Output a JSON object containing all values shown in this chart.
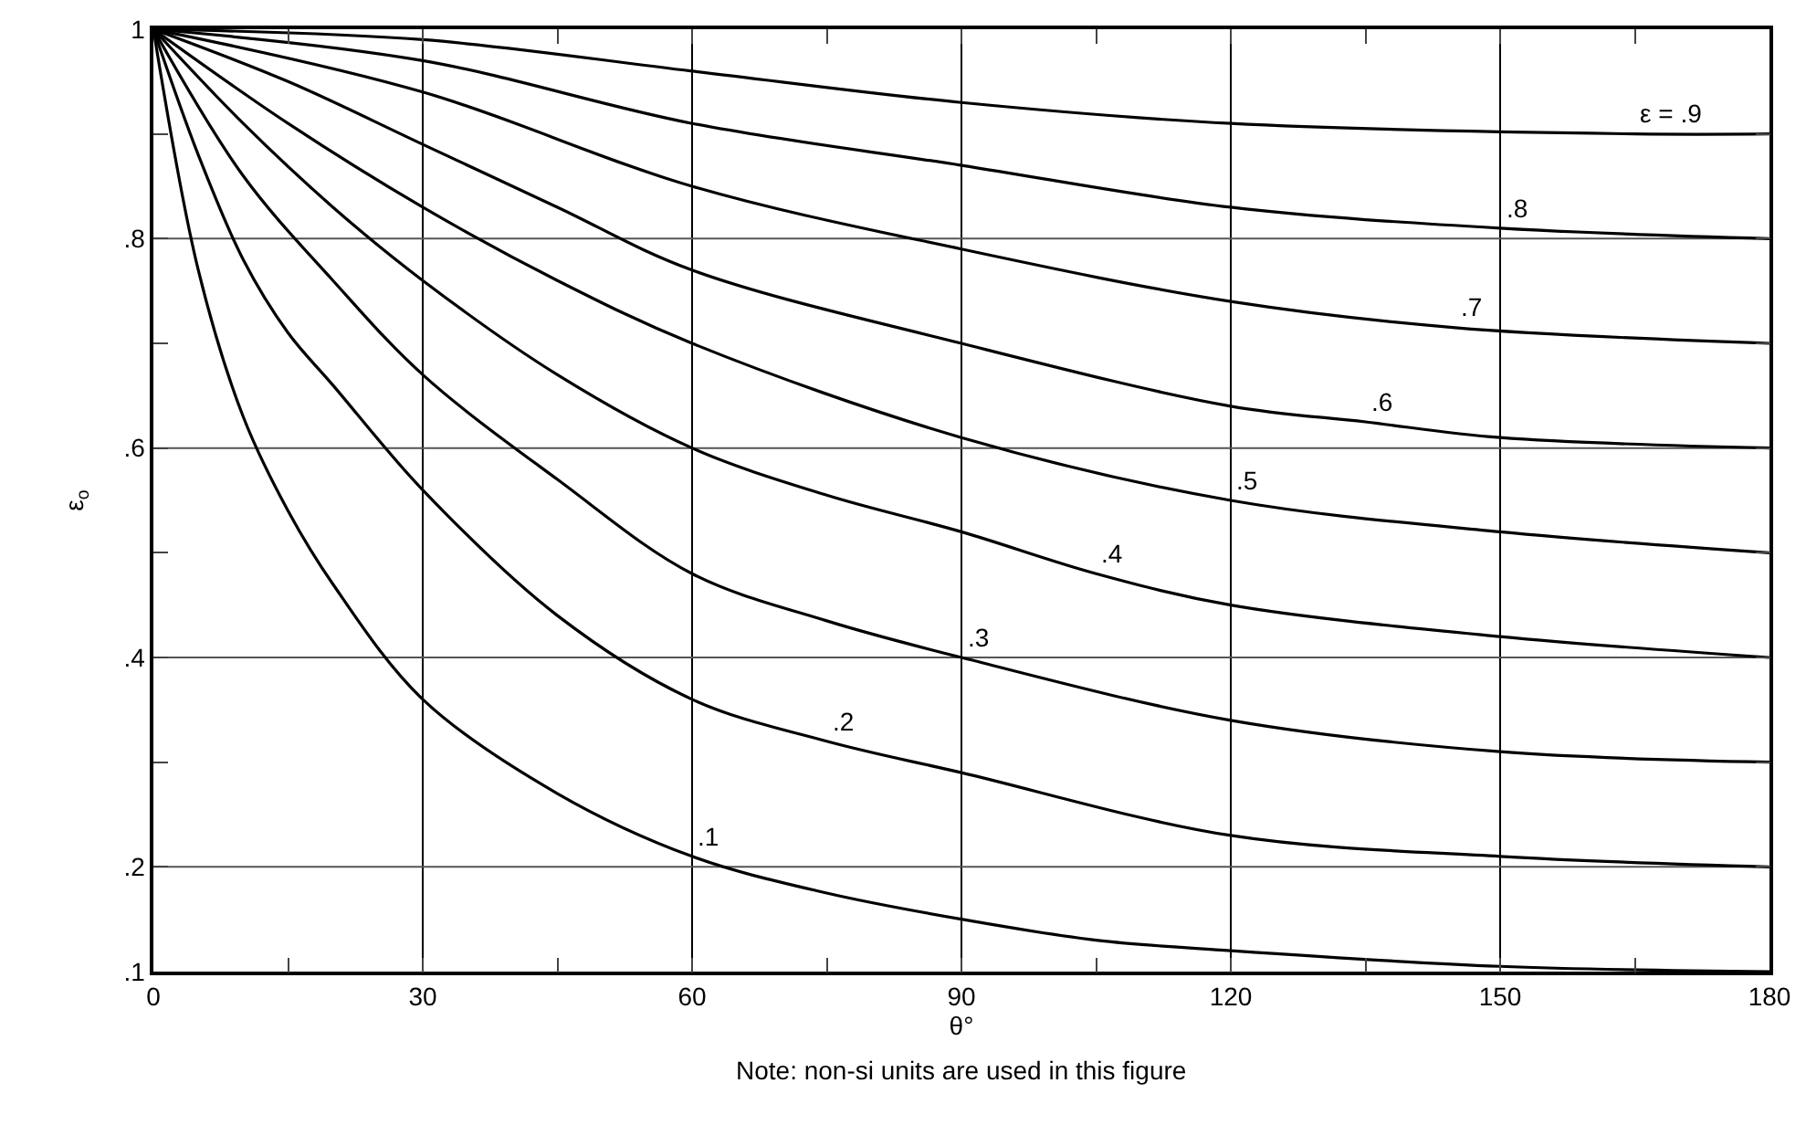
{
  "chart_data": {
    "type": "line",
    "xlabel": "θ°",
    "ylabel": "ε$_{o}$",
    "xlim": [
      0,
      180
    ],
    "ylim": [
      0.1,
      1
    ],
    "xticks": [
      0,
      {
        "value": 15,
        "label": null
      },
      30,
      {
        "value": 45,
        "label": null
      },
      60,
      {
        "value": 75,
        "label": null
      },
      90,
      {
        "value": 105,
        "label": null
      },
      120,
      {
        "value": 135,
        "label": null
      },
      150,
      {
        "value": 165,
        "label": null
      },
      180
    ],
    "yticks": [
      {
        "value": 0.1,
        "label": ".1"
      },
      {
        "value": 0.2,
        "label": ".2"
      },
      {
        "value": 0.3,
        "label": null
      },
      {
        "value": 0.4,
        "label": ".4"
      },
      {
        "value": 0.5,
        "label": null
      },
      {
        "value": 0.6,
        "label": ".6"
      },
      {
        "value": 0.7,
        "label": null
      },
      {
        "value": 0.8,
        "label": ".8"
      },
      {
        "value": 0.9,
        "label": null
      },
      1
    ],
    "grid": true,
    "marker": "none",
    "line_style": "solid",
    "series": [
      {
        "color": "#000000",
        "x": [
          0,
          5,
          10,
          15,
          20,
          30,
          45,
          60,
          75,
          90,
          105,
          120,
          150,
          180
        ],
        "values": [
          1,
          0.77,
          0.63,
          0.54,
          0.47,
          0.36,
          0.27,
          0.21,
          0.175,
          0.15,
          0.13,
          0.12,
          0.105,
          0.1
        ]
      },
      {
        "color": "#000000",
        "x": [
          0,
          5,
          10,
          15,
          20,
          30,
          45,
          60,
          75,
          90,
          120,
          150,
          180
        ],
        "values": [
          1,
          0.88,
          0.78,
          0.71,
          0.66,
          0.56,
          0.44,
          0.36,
          0.32,
          0.29,
          0.23,
          0.21,
          0.2
        ]
      },
      {
        "color": "#000000",
        "x": [
          0,
          10,
          20,
          30,
          45,
          60,
          75,
          90,
          120,
          150,
          180
        ],
        "values": [
          1,
          0.86,
          0.76,
          0.67,
          0.57,
          0.48,
          0.435,
          0.4,
          0.34,
          0.31,
          0.3
        ]
      },
      {
        "color": "#000000",
        "x": [
          0,
          10,
          20,
          30,
          45,
          60,
          75,
          90,
          105,
          120,
          150,
          180
        ],
        "values": [
          1,
          0.91,
          0.83,
          0.76,
          0.67,
          0.6,
          0.555,
          0.52,
          0.48,
          0.45,
          0.42,
          0.4
        ]
      },
      {
        "color": "#000000",
        "x": [
          0,
          15,
          30,
          45,
          60,
          90,
          120,
          150,
          180
        ],
        "values": [
          1,
          0.91,
          0.83,
          0.76,
          0.7,
          0.61,
          0.55,
          0.52,
          0.5
        ]
      },
      {
        "color": "#000000",
        "x": [
          0,
          15,
          30,
          45,
          60,
          90,
          120,
          135,
          150,
          180
        ],
        "values": [
          1,
          0.95,
          0.89,
          0.83,
          0.77,
          0.7,
          0.64,
          0.625,
          0.61,
          0.6
        ]
      },
      {
        "color": "#000000",
        "x": [
          0,
          30,
          60,
          90,
          120,
          145,
          180
        ],
        "values": [
          1,
          0.94,
          0.85,
          0.79,
          0.74,
          0.715,
          0.7
        ]
      },
      {
        "color": "#000000",
        "x": [
          0,
          30,
          60,
          90,
          120,
          150,
          180
        ],
        "values": [
          1,
          0.97,
          0.91,
          0.87,
          0.83,
          0.81,
          0.8
        ]
      },
      {
        "color": "#000000",
        "x": [
          0,
          30,
          60,
          90,
          120,
          165,
          180
        ],
        "values": [
          1,
          0.99,
          0.96,
          0.93,
          0.91,
          0.9,
          0.9
        ]
      }
    ],
    "annotations": [
      {
        "text": ".1",
        "x": 60,
        "y": 0.21
      },
      {
        "text": ".2",
        "x": 75,
        "y": 0.32
      },
      {
        "text": ".3",
        "x": 90,
        "y": 0.4
      },
      {
        "text": ".4",
        "x": 105,
        "y": 0.48
      },
      {
        "text": ".5",
        "x": 120,
        "y": 0.55
      },
      {
        "text": ".6",
        "x": 135,
        "y": 0.625
      },
      {
        "text": ".7",
        "x": 145,
        "y": 0.715
      },
      {
        "text": ".8",
        "x": 150,
        "y": 0.81
      },
      {
        "text": "ε = .9",
        "x": 165,
        "y": 0.9
      },
      "Note: non-si units are used in this figure"
    ]
  }
}
